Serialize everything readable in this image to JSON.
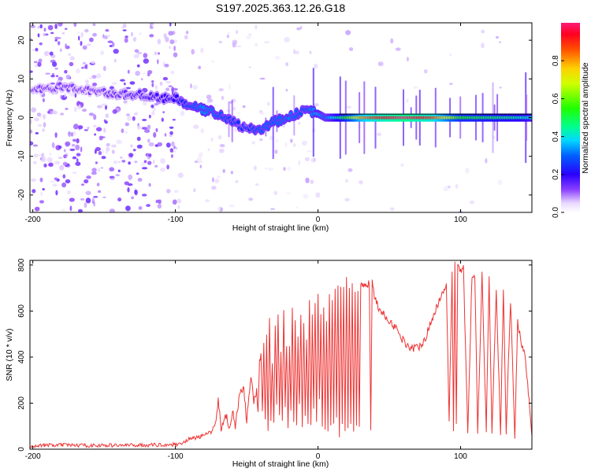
{
  "title": "S197.2025.363.12.26.G18",
  "colors": {
    "line": "#ee3333",
    "axis": "#000000",
    "ridge": "#ff0000"
  },
  "chart_data": [
    {
      "type": "heatmap",
      "name": "spectrogram",
      "xlabel": "Height of straight line (km)",
      "ylabel": "Frequency (Hz)",
      "xlim": [
        -202,
        150
      ],
      "ylim": [
        -24.5,
        24.5
      ],
      "xticks": [
        -200,
        -100,
        0,
        100
      ],
      "xtick_labels": [
        "-200",
        "-100",
        "0",
        "100"
      ],
      "yticks": [
        -20,
        -10,
        0,
        10,
        20
      ],
      "ytick_labels": [
        "-20",
        "-10",
        "0",
        "10",
        "20"
      ],
      "ridge": {
        "x": [
          -200,
          -180,
          -160,
          -140,
          -125,
          -110,
          -100,
          -90,
          -80,
          -70,
          -60,
          -50,
          -40,
          -30,
          -20,
          -10,
          0,
          5,
          10,
          20,
          30,
          40,
          60,
          80,
          100,
          120,
          140,
          150
        ],
        "frequency": [
          7,
          8,
          7,
          6,
          6,
          5,
          5,
          3,
          2,
          1,
          -1,
          -3,
          -3,
          -1,
          0,
          2,
          1,
          0,
          0,
          0,
          0,
          0,
          0,
          0,
          0,
          0,
          0,
          0
        ],
        "amplitude": [
          0.12,
          0.13,
          0.12,
          0.14,
          0.16,
          0.18,
          0.2,
          0.28,
          0.33,
          0.3,
          0.26,
          0.24,
          0.3,
          0.3,
          0.32,
          0.28,
          0.35,
          0.3,
          0.38,
          0.55,
          0.8,
          0.9,
          1.0,
          0.9,
          0.55,
          0.5,
          0.45,
          0.4
        ]
      },
      "colorbar": {
        "label": "Normalized spectral amplitude",
        "ticks": [
          0.0,
          0.2,
          0.4,
          0.6,
          0.8
        ],
        "tick_labels": [
          "0.0",
          "0.2",
          "0.4",
          "0.6",
          "0.8"
        ],
        "range": [
          0,
          1
        ]
      }
    },
    {
      "type": "line",
      "name": "snr",
      "xlabel": "Height of straight line (km)",
      "ylabel": "SNR (10 * v/v)",
      "xlim": [
        -202,
        150
      ],
      "ylim": [
        0,
        820
      ],
      "xticks": [
        -200,
        -100,
        0,
        100
      ],
      "xtick_labels": [
        "-200",
        "-100",
        "0",
        "100"
      ],
      "yticks": [
        0,
        200,
        400,
        600,
        800
      ],
      "ytick_labels": [
        "0",
        "200",
        "400",
        "600",
        "800"
      ],
      "series": [
        {
          "name": "SNR",
          "x": [
            -202,
            -180,
            -160,
            -140,
            -120,
            -100,
            -95,
            -90,
            -85,
            -80,
            -75,
            -72,
            -70,
            -68,
            -65,
            -62,
            -60,
            -58,
            -55,
            -52,
            -50,
            -47,
            -45,
            -43,
            -42,
            -41,
            -40,
            -39,
            -38,
            -37,
            -36,
            -35,
            -34,
            -33,
            -32,
            -31,
            -30,
            -29,
            -28,
            -27,
            -26,
            -25,
            -24,
            -23,
            -22,
            -21,
            -20,
            -19,
            -18,
            -17,
            -16,
            -15,
            -14,
            -13,
            -12,
            -11,
            -10,
            -9,
            -8,
            -7,
            -6,
            -5,
            -4,
            -3,
            -2,
            -1,
            0,
            1,
            2,
            3,
            4,
            5,
            6,
            7,
            8,
            9,
            10,
            11,
            12,
            13,
            14,
            15,
            16,
            17,
            18,
            19,
            20,
            21,
            22,
            23,
            24,
            25,
            26,
            27,
            28,
            29,
            30,
            32,
            34,
            36,
            37,
            38,
            39,
            40,
            42,
            45,
            50,
            55,
            60,
            65,
            70,
            75,
            80,
            85,
            90,
            92,
            94,
            95,
            96,
            97,
            98,
            100,
            102,
            105,
            108,
            110,
            112,
            115,
            118,
            120,
            122,
            125,
            128,
            130,
            132,
            135,
            138,
            140,
            142,
            145,
            147,
            148,
            149,
            150
          ],
          "values": [
            15,
            18,
            16,
            17,
            18,
            20,
            28,
            45,
            50,
            60,
            75,
            110,
            220,
            80,
            160,
            90,
            170,
            100,
            240,
            260,
            120,
            320,
            200,
            250,
            150,
            380,
            420,
            150,
            460,
            120,
            500,
            80,
            570,
            140,
            380,
            110,
            540,
            200,
            600,
            150,
            420,
            120,
            620,
            180,
            450,
            100,
            440,
            160,
            620,
            130,
            550,
            110,
            480,
            180,
            590,
            90,
            560,
            140,
            490,
            120,
            660,
            100,
            580,
            160,
            640,
            110,
            680,
            200,
            580,
            90,
            600,
            100,
            560,
            80,
            690,
            120,
            650,
            100,
            690,
            150,
            700,
            60,
            710,
            120,
            690,
            80,
            730,
            90,
            700,
            100,
            710,
            80,
            690,
            100,
            700,
            90,
            720,
            700,
            710,
            720,
            100,
            740,
            680,
            660,
            620,
            590,
            560,
            520,
            470,
            440,
            440,
            480,
            560,
            650,
            720,
            120,
            780,
            80,
            800,
            110,
            790,
            770,
            790,
            70,
            760,
            760,
            60,
            760,
            80,
            740,
            70,
            700,
            60,
            690,
            70,
            650,
            50,
            560,
            480,
            400,
            280,
            220,
            130,
            60
          ]
        }
      ]
    }
  ]
}
